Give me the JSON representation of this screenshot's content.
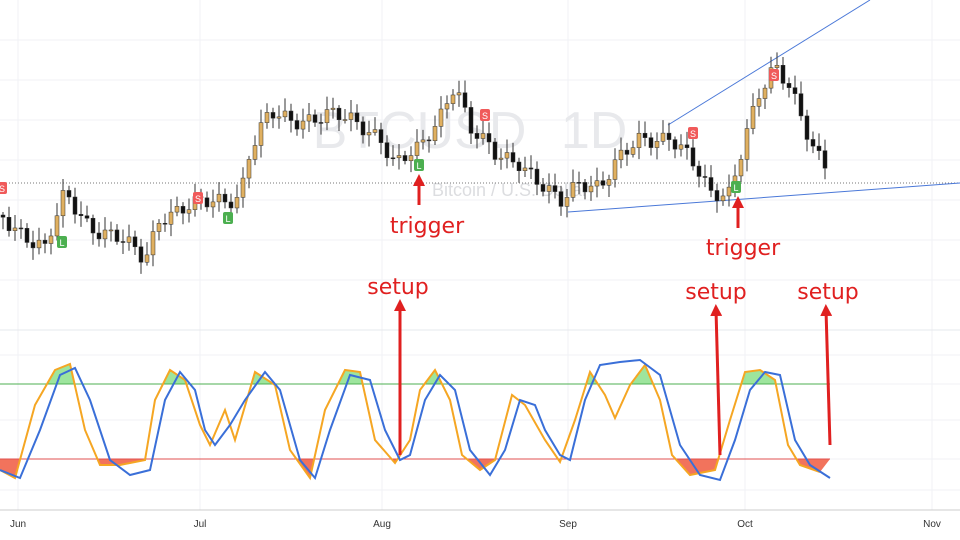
{
  "watermark": {
    "symbol": "BTCUSD",
    "interval": "1D",
    "description": "Bitcoin / U.S. Dollar"
  },
  "time_axis": {
    "labels": [
      "Jun",
      "Jul",
      "Aug",
      "Sep",
      "Oct",
      "Nov"
    ]
  },
  "markers": [
    {
      "label": "S"
    },
    {
      "label": "L"
    },
    {
      "label": "S"
    },
    {
      "label": "L"
    },
    {
      "label": "L"
    },
    {
      "label": "S"
    },
    {
      "label": "S"
    },
    {
      "label": "L"
    },
    {
      "label": "S"
    }
  ],
  "annotations": [
    {
      "text": "trigger"
    },
    {
      "text": "trigger"
    },
    {
      "text": "setup"
    },
    {
      "text": "setup"
    },
    {
      "text": "setup"
    }
  ]
}
